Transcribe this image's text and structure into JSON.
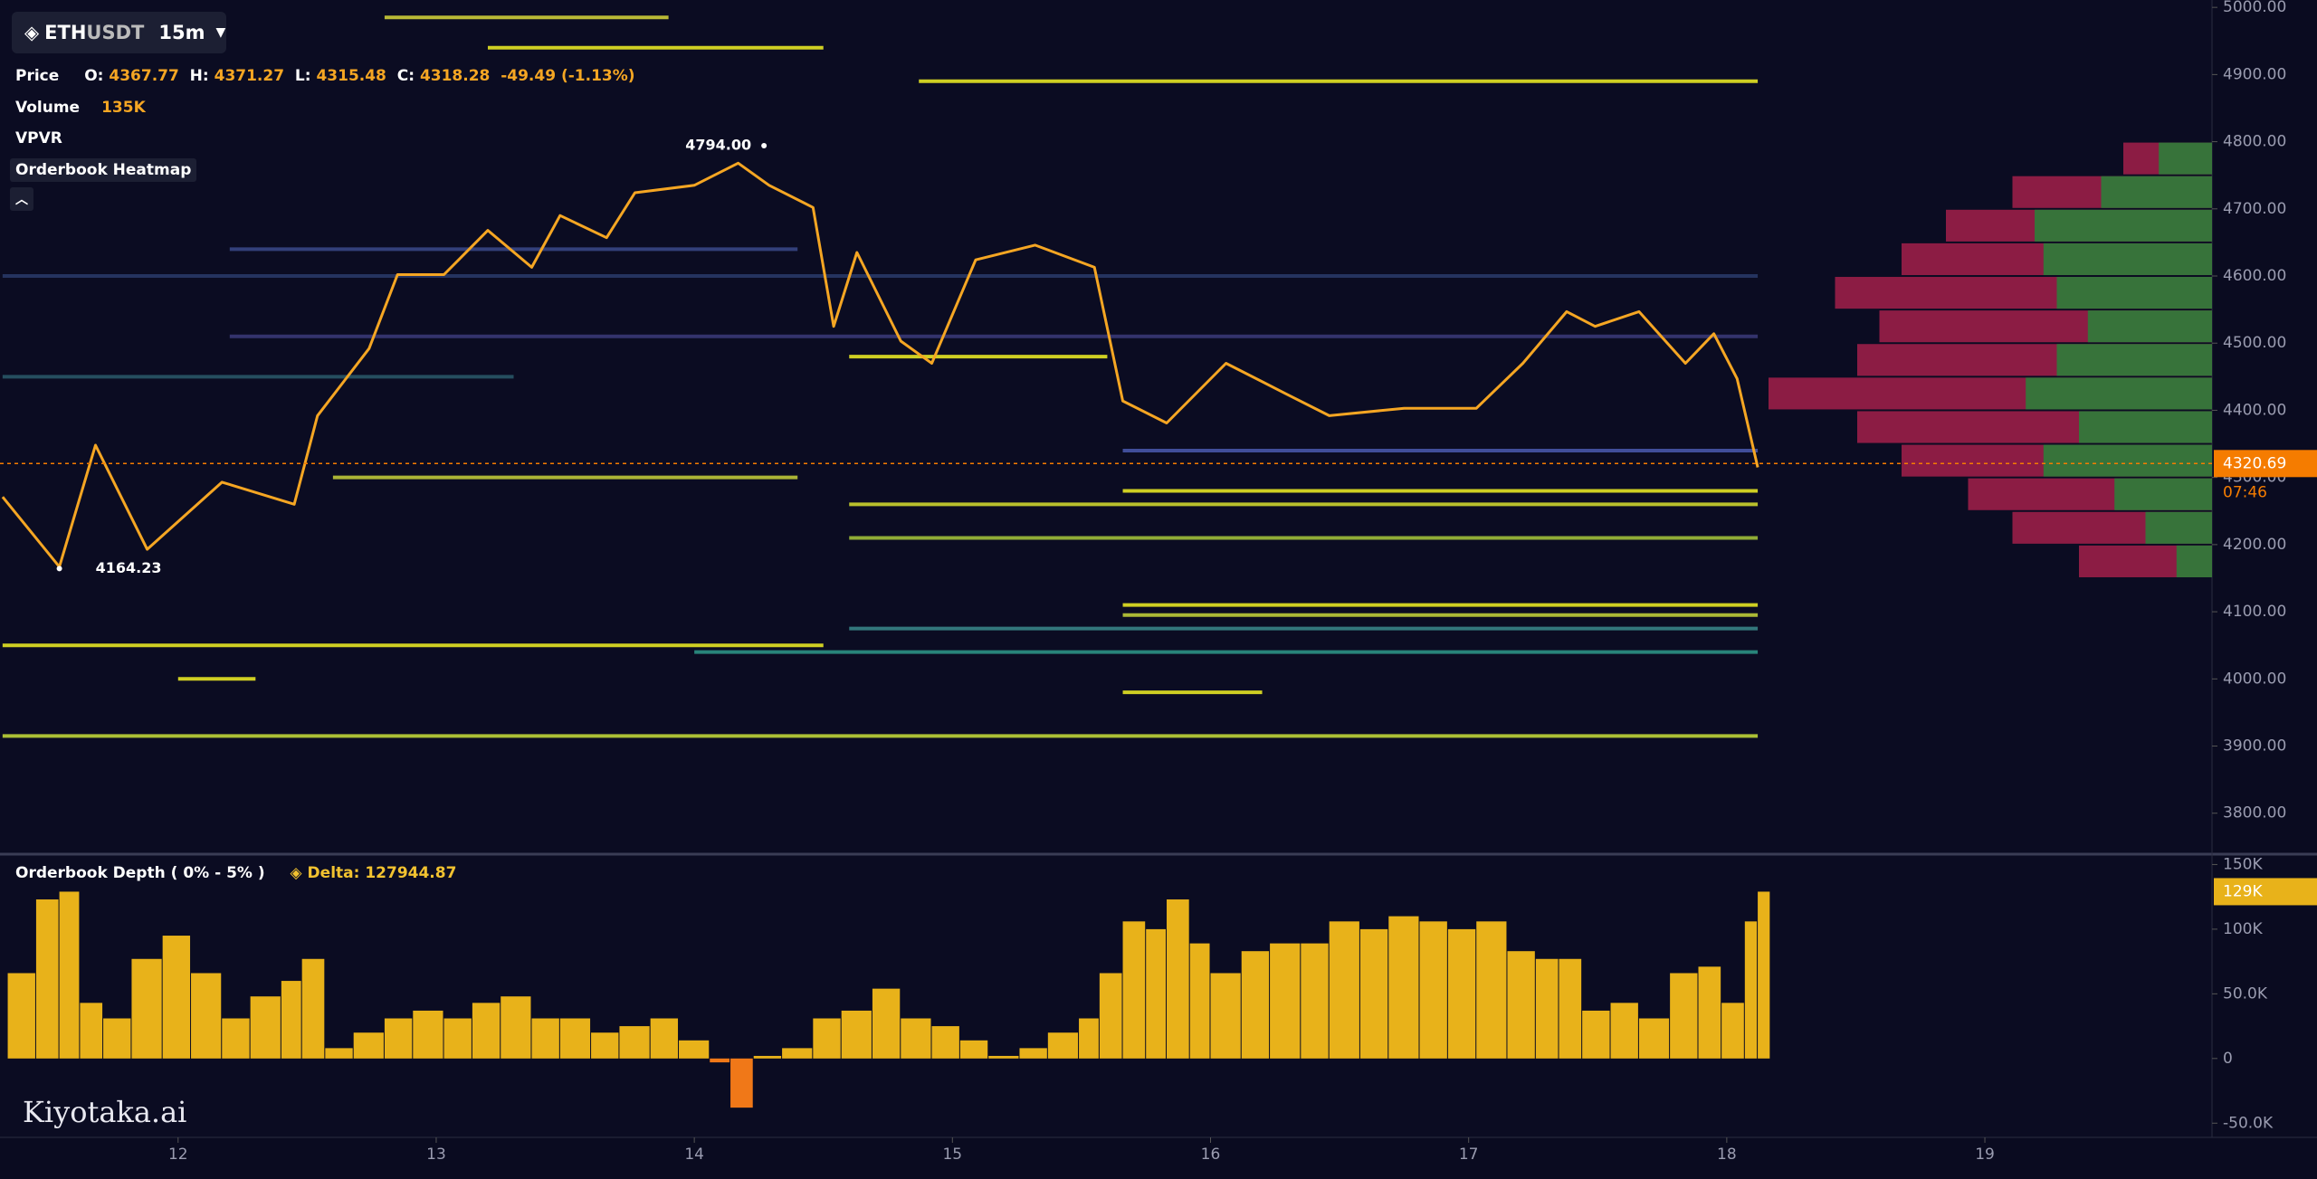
{
  "toolbar": {
    "base": "ETH",
    "quote": "USDT",
    "interval": "15m"
  },
  "legend": {
    "price": "Price",
    "o_label": "O:",
    "o": "4367.77",
    "h_label": "H:",
    "h": "4371.27",
    "l_label": "L:",
    "l": "4315.48",
    "c_label": "C:",
    "c": "4318.28",
    "change": "-49.49 (-1.13%)",
    "volume": "Volume",
    "volume_value": "135K",
    "vpvr": "VPVR",
    "heatmap": "Orderbook Heatmap"
  },
  "watermark": "Kiyotaka.ai",
  "chart_data": [
    {
      "type": "line",
      "color": "#f5a623",
      "x": [
        11.32,
        11.54,
        11.68,
        11.88,
        12.17,
        12.45,
        12.54,
        12.74,
        12.85,
        13.03,
        13.2,
        13.37,
        13.48,
        13.66,
        13.77,
        14.0,
        14.17,
        14.29,
        14.46,
        14.54,
        14.63,
        14.8,
        14.92,
        15.09,
        15.32,
        15.55,
        15.66,
        15.83,
        16.06,
        16.29,
        16.46,
        16.75,
        17.03,
        17.21,
        17.38,
        17.49,
        17.66,
        17.84,
        17.95,
        18.04,
        18.12
      ],
      "values": [
        4271,
        4167,
        4348,
        4193,
        4293,
        4260,
        4392,
        4492,
        4602,
        4602,
        4668,
        4613,
        4690,
        4657,
        4724,
        4735,
        4768,
        4735,
        4702,
        4525,
        4635,
        4503,
        4470,
        4624,
        4646,
        4613,
        4414,
        4381,
        4470,
        4425,
        4392,
        4403,
        4403,
        4470,
        4547,
        4525,
        4547,
        4470,
        4514,
        4447,
        4315
      ],
      "xlim": [
        11.31,
        19.88
      ],
      "xticks": [
        12,
        13,
        14,
        15,
        16,
        17,
        18,
        19
      ],
      "ylim": [
        3739,
        5011
      ],
      "yticks": [
        {
          "value": 3800,
          "label": "3800.00"
        },
        {
          "value": 3900,
          "label": "3900.00"
        },
        {
          "value": 4000,
          "label": "4000.00"
        },
        {
          "value": 4100,
          "label": "4100.00"
        },
        {
          "value": 4200,
          "label": "4200.00"
        },
        {
          "value": 4300,
          "label": "4300.00"
        },
        {
          "value": 4400,
          "label": "4400.00"
        },
        {
          "value": 4500,
          "label": "4500.00"
        },
        {
          "value": 4600,
          "label": "4600.00"
        },
        {
          "value": 4700,
          "label": "4700.00"
        },
        {
          "value": 4800,
          "label": "4800.00"
        },
        {
          "value": 4900,
          "label": "4900.00"
        },
        {
          "value": 5000,
          "label": "5000.00"
        }
      ],
      "annotations": [
        {
          "text": "4794.00",
          "x": 14.27,
          "y": 4794
        },
        {
          "text": "4164.23",
          "x": 11.54,
          "y": 4164.23
        }
      ],
      "last_price": {
        "value": 4320.69,
        "label": "4320.69",
        "countdown": "07:46",
        "color": "#f57c00"
      },
      "heatmap_levels": [
        {
          "price": 4890,
          "from": 14.87,
          "to": 18.12,
          "color": "#f2f224"
        },
        {
          "price": 4050,
          "from": 11.32,
          "to": 14.5,
          "color": "#f2f224"
        },
        {
          "price": 3915,
          "from": 11.32,
          "to": 18.12,
          "color": "#c8e03a"
        },
        {
          "price": 4300,
          "from": 12.6,
          "to": 14.4,
          "color": "#c8d23a"
        },
        {
          "price": 4280,
          "from": 15.66,
          "to": 18.12,
          "color": "#f2f224"
        },
        {
          "price": 4260,
          "from": 14.6,
          "to": 18.12,
          "color": "#d8e02e"
        },
        {
          "price": 4210,
          "from": 14.6,
          "to": 18.12,
          "color": "#a8c83a"
        },
        {
          "price": 4110,
          "from": 15.66,
          "to": 18.12,
          "color": "#f2f224"
        },
        {
          "price": 4095,
          "from": 15.66,
          "to": 18.12,
          "color": "#c8d63a"
        },
        {
          "price": 4075,
          "from": 14.6,
          "to": 18.12,
          "color": "#3a8a8c"
        },
        {
          "price": 4040,
          "from": 14.0,
          "to": 18.12,
          "color": "#2e9a8a"
        },
        {
          "price": 3980,
          "from": 15.66,
          "to": 16.2,
          "color": "#f2f224"
        },
        {
          "price": 4000,
          "from": 12.0,
          "to": 12.3,
          "color": "#f2f224"
        },
        {
          "price": 4480,
          "from": 14.6,
          "to": 15.6,
          "color": "#f2f224"
        },
        {
          "price": 4510,
          "from": 12.2,
          "to": 18.12,
          "color": "#3a3a7a"
        },
        {
          "price": 4640,
          "from": 12.2,
          "to": 14.4,
          "color": "#3a4a8a"
        },
        {
          "price": 4340,
          "from": 15.66,
          "to": 18.12,
          "color": "#4a5ab0"
        },
        {
          "price": 4940,
          "from": 13.2,
          "to": 14.5,
          "color": "#f2f224"
        },
        {
          "price": 4985,
          "from": 12.8,
          "to": 13.9,
          "color": "#d8d83a"
        },
        {
          "price": 4600,
          "from": 11.32,
          "to": 18.12,
          "color": "#2a3a6a"
        },
        {
          "price": 4450,
          "from": 11.32,
          "to": 13.3,
          "color": "#2a5a6a"
        }
      ],
      "vpvr": {
        "bins": [
          4150,
          4200,
          4250,
          4300,
          4350,
          4400,
          4450,
          4500,
          4550,
          4600,
          4650,
          4700,
          4750,
          4800
        ],
        "total": [
          30,
          45,
          55,
          70,
          80,
          100,
          80,
          75,
          85,
          70,
          60,
          45,
          20
        ],
        "buy": [
          8,
          15,
          22,
          38,
          30,
          42,
          35,
          28,
          35,
          38,
          40,
          25,
          12
        ],
        "sell_color": "#a3204a",
        "buy_color": "#2e7d3a"
      }
    },
    {
      "type": "bar",
      "title": "Orderbook Depth ( 0% - 5% )",
      "delta_label": "Delta: 127944.87",
      "color": "#e8b21a",
      "negative_color": "#f07818",
      "x": [
        11.34,
        11.45,
        11.54,
        11.62,
        11.71,
        11.82,
        11.94,
        12.05,
        12.17,
        12.28,
        12.4,
        12.48,
        12.57,
        12.68,
        12.8,
        12.91,
        13.03,
        13.14,
        13.25,
        13.37,
        13.48,
        13.6,
        13.71,
        13.83,
        13.94,
        14.06,
        14.14,
        14.23,
        14.34,
        14.46,
        14.57,
        14.69,
        14.8,
        14.92,
        15.03,
        15.14,
        15.26,
        15.37,
        15.49,
        15.57,
        15.66,
        15.75,
        15.83,
        15.92,
        16.0,
        16.12,
        16.23,
        16.35,
        16.46,
        16.58,
        16.69,
        16.81,
        16.92,
        17.03,
        17.15,
        17.26,
        17.35,
        17.44,
        17.55,
        17.66,
        17.78,
        17.89,
        17.98,
        18.07,
        18.12
      ],
      "values": [
        66000,
        123000,
        129000,
        43000,
        31000,
        77000,
        95000,
        66000,
        31000,
        48000,
        60000,
        77000,
        8000,
        20000,
        31000,
        37000,
        31000,
        43000,
        48000,
        31000,
        31000,
        20000,
        25000,
        31000,
        14000,
        -3000,
        -38000,
        2000,
        8000,
        31000,
        37000,
        54000,
        31000,
        25000,
        14000,
        2000,
        8000,
        20000,
        31000,
        66000,
        106000,
        100000,
        123000,
        89000,
        66000,
        83000,
        89000,
        89000,
        106000,
        100000,
        110000,
        106000,
        100000,
        106000,
        83000,
        77000,
        77000,
        37000,
        43000,
        31000,
        66000,
        71000,
        43000,
        106000,
        129000
      ],
      "ylim": [
        -61000,
        158000
      ],
      "yticks": [
        {
          "value": -50000,
          "label": "-50.0K"
        },
        {
          "value": 0,
          "label": "0"
        },
        {
          "value": 50000,
          "label": "50.0K"
        },
        {
          "value": 100000,
          "label": "100K"
        },
        {
          "value": 150000,
          "label": "150K"
        }
      ],
      "last_value": {
        "value": 129000,
        "label": "129K"
      }
    }
  ]
}
